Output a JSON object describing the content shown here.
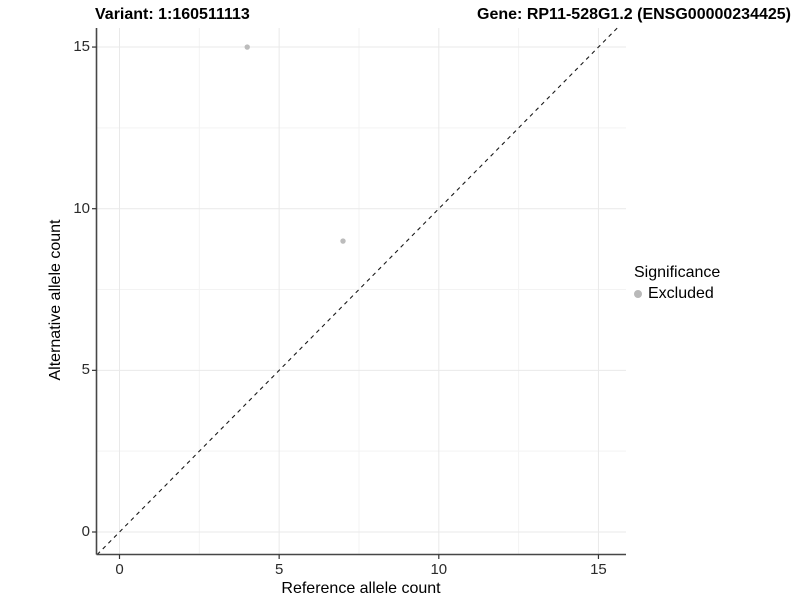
{
  "header": {
    "title_left": "Variant: 1:160511113",
    "title_right": "Gene: RP11-528G1.2 (ENSG00000234425)"
  },
  "chart_data": {
    "type": "scatter",
    "title_left": "Variant: 1:160511113",
    "title_right": "Gene: RP11-528G1.2 (ENSG00000234425)",
    "xlabel": "Reference allele count",
    "ylabel": "Alternative allele count",
    "x_ticks": [
      0,
      5,
      10,
      15
    ],
    "y_ticks": [
      0,
      5,
      10,
      15
    ],
    "minor_ticks": [
      2.5,
      7.5,
      12.5
    ],
    "xlim": [
      -0.7,
      15.85
    ],
    "ylim": [
      -0.7,
      15.6
    ],
    "grid": true,
    "legend_position": "right",
    "series": [
      {
        "name": "Excluded",
        "color": "#bcbcbc",
        "points": [
          {
            "x": 4,
            "y": 15
          },
          {
            "x": 7,
            "y": 9
          }
        ]
      }
    ],
    "reference_line": {
      "type": "identity y=x",
      "style": "dashed",
      "color": "#1a1a1a"
    },
    "colors": {
      "grid_major": "#e9e9e9",
      "grid_minor": "#f3f3f3",
      "axis_line": "#474747",
      "tick_mark": "#333333"
    }
  },
  "legend": {
    "title": "Significance",
    "items": [
      {
        "label": "Excluded",
        "color": "#b9b9b9"
      }
    ]
  }
}
